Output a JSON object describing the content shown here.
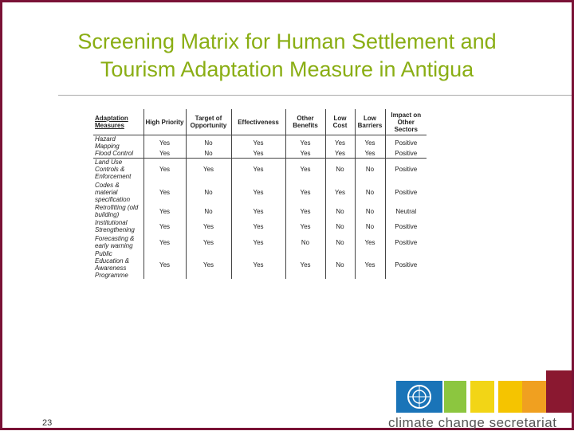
{
  "title": [
    "Screening Matrix for Human Settlement and",
    "Tourism Adaptation Measure in Antigua"
  ],
  "table": {
    "headers": [
      "Adaptation Measures",
      "High Priority",
      "Target of Opportunity",
      "Effectiveness",
      "Other Benefits",
      "Low Cost",
      "Low Barriers",
      "Impact on Other Sectors"
    ],
    "rows": [
      [
        "Hazard Mapping",
        "Yes",
        "No",
        "Yes",
        "Yes",
        "Yes",
        "Yes",
        "Positive"
      ],
      [
        "Flood Control",
        "Yes",
        "No",
        "Yes",
        "Yes",
        "Yes",
        "Yes",
        "Positive"
      ],
      [
        "Land Use Controls & Enforcement",
        "Yes",
        "Yes",
        "Yes",
        "Yes",
        "No",
        "No",
        "Positive"
      ],
      [
        "Codes & material specification",
        "Yes",
        "No",
        "Yes",
        "Yes",
        "Yes",
        "No",
        "Positive"
      ],
      [
        "Retrofitting (old building)",
        "Yes",
        "No",
        "Yes",
        "Yes",
        "No",
        "No",
        "Neutral"
      ],
      [
        "Institutional Strengthening",
        "Yes",
        "Yes",
        "Yes",
        "Yes",
        "No",
        "No",
        "Positive"
      ],
      [
        "Forecasting & early warning",
        "Yes",
        "Yes",
        "Yes",
        "No",
        "No",
        "Yes",
        "Positive"
      ],
      [
        "Public Education & Awareness Programme",
        "Yes",
        "Yes",
        "Yes",
        "Yes",
        "No",
        "Yes",
        "Positive"
      ]
    ]
  },
  "slide_number": "23",
  "logo_text": "climate change secretariat"
}
